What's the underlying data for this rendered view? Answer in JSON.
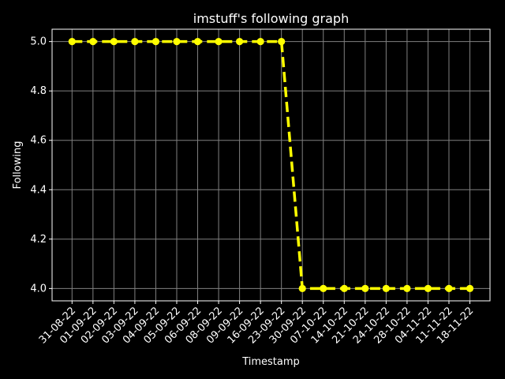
{
  "chart_data": {
    "type": "line",
    "title": "imstuff's following graph",
    "xlabel": "Timestamp",
    "ylabel": "Following",
    "categories": [
      "31-08-22",
      "01-09-22",
      "02-09-22",
      "03-09-22",
      "04-09-22",
      "05-09-22",
      "06-09-22",
      "08-09-22",
      "09-09-22",
      "16-09-22",
      "23-09-22",
      "30-09-22",
      "07-10-22",
      "14-10-22",
      "21-10-22",
      "24-10-22",
      "28-10-22",
      "04-11-22",
      "11-11-22",
      "18-11-22"
    ],
    "series": [
      {
        "values": [
          5,
          5,
          5,
          5,
          5,
          5,
          5,
          5,
          5,
          5,
          5,
          4,
          4,
          4,
          4,
          4,
          4,
          4,
          4,
          4
        ],
        "color": "#ffff00",
        "line_style": "dashed",
        "marker": "circle"
      }
    ],
    "ylim": [
      3.95,
      5.05
    ],
    "yticks": [
      "4.0",
      "4.2",
      "4.4",
      "4.6",
      "4.8",
      "5.0"
    ],
    "grid": true,
    "background": "#000000",
    "foreground": "#ffffff",
    "grid_color": "#808080"
  }
}
